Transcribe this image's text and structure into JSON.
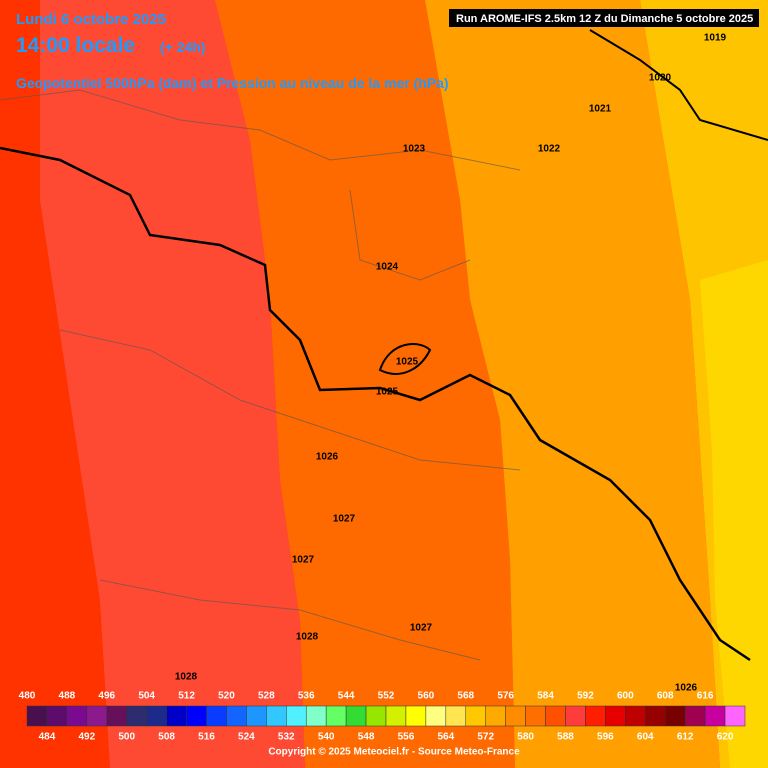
{
  "header": {
    "date": "Lundi 6 octobre 2025",
    "time": "14:00 locale",
    "lead": "(+ 24h)",
    "subtitle": "Geopotentiel 500hPa (dam) et Pression au niveau de la mer (hPa)",
    "run": "Run AROME-IFS 2.5km 12 Z du Dimanche 5 octobre 2025"
  },
  "isobars": [
    "1019",
    "1020",
    "1021",
    "1022",
    "1023",
    "1024",
    "1025",
    "1025",
    "1026",
    "1027",
    "1027",
    "1027",
    "1028",
    "1028",
    "1026"
  ],
  "legend": {
    "ticks": [
      480,
      484,
      488,
      492,
      496,
      500,
      504,
      508,
      512,
      516,
      520,
      524,
      528,
      532,
      536,
      540,
      544,
      548,
      552,
      556,
      560,
      564,
      568,
      572,
      576,
      580,
      584,
      588,
      592,
      596,
      600,
      604,
      608,
      612,
      616,
      620
    ],
    "colors": [
      "#4a0f4f",
      "#5c0d6b",
      "#7a0a8f",
      "#8c1a8c",
      "#66105c",
      "#2c2c6e",
      "#1c2a8c",
      "#0000c8",
      "#0000ff",
      "#0a3cff",
      "#1464ff",
      "#1e96ff",
      "#32c8ff",
      "#50f0ff",
      "#80ffc8",
      "#64ff64",
      "#32dc32",
      "#96e600",
      "#d2f000",
      "#ffff00",
      "#ffff80",
      "#ffe650",
      "#ffc800",
      "#ffaa00",
      "#ff8c00",
      "#ff6e00",
      "#ff5000",
      "#ff3c3c",
      "#ff1e00",
      "#e60000",
      "#be0000",
      "#960000",
      "#780000",
      "#a00050",
      "#c800a0",
      "#ff64ff"
    ]
  },
  "footer": {
    "copyright": "Copyright © 2025 Meteociel.fr - Source Meteo-France"
  }
}
